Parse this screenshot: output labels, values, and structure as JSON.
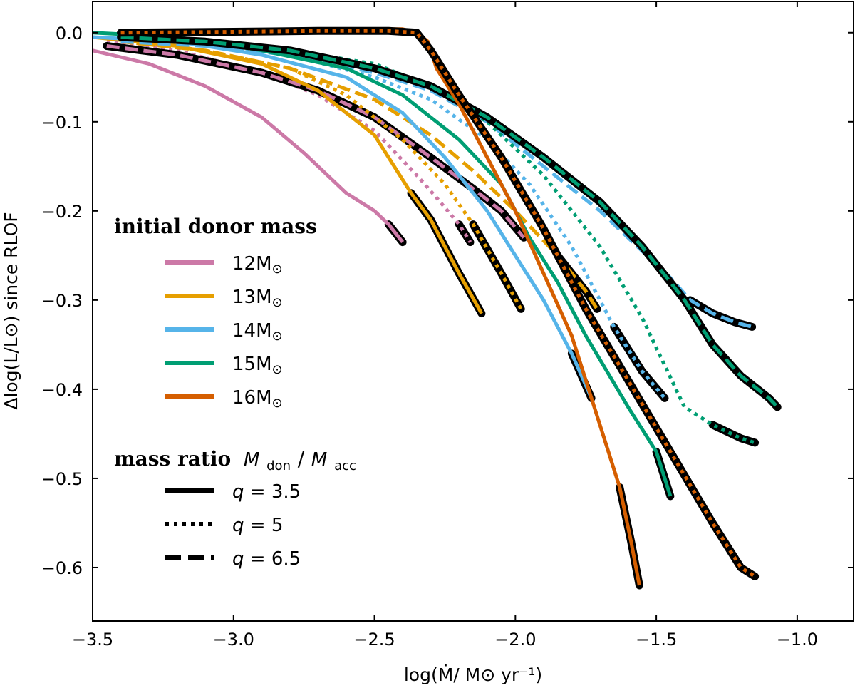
{
  "chart_data": {
    "type": "line",
    "xlabel": "log(Ṁ/ M⊙ yr⁻¹)",
    "ylabel": "Δlog(L/L⊙) since RLOF",
    "xlim": [
      -3.5,
      -0.8
    ],
    "ylim": [
      -0.66,
      0.035
    ],
    "xticks": [
      -3.5,
      -3.0,
      -2.5,
      -2.0,
      -1.5,
      -1.0
    ],
    "xtick_labels": [
      "−3.5",
      "−3.0",
      "−2.5",
      "−2.0",
      "−1.5",
      "−1.0"
    ],
    "yticks": [
      0.0,
      -0.1,
      -0.2,
      -0.3,
      -0.4,
      -0.5,
      -0.6
    ],
    "ytick_labels": [
      "0.0",
      "−0.1",
      "−0.2",
      "−0.3",
      "−0.4",
      "−0.5",
      "−0.6"
    ],
    "legend_donor": {
      "title": "initial donor mass",
      "entries": [
        {
          "mass": "12",
          "unit": "M⊙",
          "color": "#CC79A7"
        },
        {
          "mass": "13",
          "unit": "M⊙",
          "color": "#E69F00"
        },
        {
          "mass": "14",
          "unit": "M⊙",
          "color": "#56B4E9"
        },
        {
          "mass": "15",
          "unit": "M⊙",
          "color": "#009E73"
        },
        {
          "mass": "16",
          "unit": "M⊙",
          "color": "#D55E00"
        }
      ]
    },
    "legend_q": {
      "title": "mass ratio",
      "title_math": "M",
      "sub_don": "don",
      "slash": "/",
      "title_math2": "M",
      "sub_acc": "acc",
      "entries": [
        {
          "label": "q",
          "eq": " = 3.5",
          "style": "solid"
        },
        {
          "label": "q",
          "eq": " = 5",
          "style": "dotted"
        },
        {
          "label": "q",
          "eq": " = 6.5",
          "style": "dashed"
        }
      ]
    },
    "series": [
      {
        "name": "12M⊙ q=3.5",
        "color": "#CC79A7",
        "style": "solid",
        "x": [
          -3.5,
          -3.3,
          -3.1,
          -2.9,
          -2.75,
          -2.6,
          -2.5,
          -2.45,
          -2.4
        ],
        "y": [
          -0.02,
          -0.035,
          -0.06,
          -0.095,
          -0.135,
          -0.18,
          -0.2,
          -0.215,
          -0.235
        ],
        "highlight_from": -2.49
      },
      {
        "name": "12M⊙ q=5",
        "color": "#CC79A7",
        "style": "dotted",
        "x": [
          -3.45,
          -3.2,
          -2.9,
          -2.7,
          -2.5,
          -2.35,
          -2.28,
          -2.2,
          -2.16
        ],
        "y": [
          -0.01,
          -0.02,
          -0.045,
          -0.07,
          -0.11,
          -0.16,
          -0.185,
          -0.215,
          -0.235
        ],
        "highlight_from": -2.25
      },
      {
        "name": "12M⊙ q=6.5",
        "color": "#CC79A7",
        "style": "dashed",
        "x": [
          -3.45,
          -3.2,
          -2.9,
          -2.7,
          -2.5,
          -2.3,
          -2.15,
          -2.05,
          -1.97
        ],
        "y": [
          -0.015,
          -0.025,
          -0.045,
          -0.065,
          -0.095,
          -0.14,
          -0.175,
          -0.2,
          -0.23
        ],
        "highlight_from": -9
      },
      {
        "name": "13M⊙ q=3.5",
        "color": "#E69F00",
        "style": "solid",
        "x": [
          -3.5,
          -3.2,
          -2.9,
          -2.7,
          -2.5,
          -2.37,
          -2.3,
          -2.2,
          -2.12
        ],
        "y": [
          -0.005,
          -0.015,
          -0.035,
          -0.065,
          -0.115,
          -0.18,
          -0.21,
          -0.27,
          -0.315
        ],
        "highlight_from": -2.37
      },
      {
        "name": "13M⊙ q=5",
        "color": "#E69F00",
        "style": "dotted",
        "x": [
          -3.4,
          -3.1,
          -2.8,
          -2.6,
          -2.4,
          -2.25,
          -2.15,
          -2.05,
          -1.98
        ],
        "y": [
          -0.01,
          -0.02,
          -0.04,
          -0.07,
          -0.12,
          -0.17,
          -0.215,
          -0.27,
          -0.31
        ],
        "highlight_from": -2.18
      },
      {
        "name": "13M⊙ q=6.5",
        "color": "#E69F00",
        "style": "dashed",
        "x": [
          -3.4,
          -3.1,
          -2.8,
          -2.5,
          -2.3,
          -2.15,
          -2.0,
          -1.85,
          -1.75,
          -1.71
        ],
        "y": [
          -0.01,
          -0.02,
          -0.04,
          -0.075,
          -0.115,
          -0.155,
          -0.2,
          -0.25,
          -0.29,
          -0.31
        ],
        "highlight_from": -1.89
      },
      {
        "name": "14M⊙ q=3.5",
        "color": "#56B4E9",
        "style": "solid",
        "x": [
          -3.5,
          -3.2,
          -2.9,
          -2.6,
          -2.4,
          -2.25,
          -2.1,
          -2.0,
          -1.9,
          -1.8,
          -1.73
        ],
        "y": [
          -0.005,
          -0.01,
          -0.025,
          -0.05,
          -0.09,
          -0.14,
          -0.2,
          -0.25,
          -0.3,
          -0.36,
          -0.41
        ],
        "highlight_from": -1.8
      },
      {
        "name": "14M⊙ q=5",
        "color": "#56B4E9",
        "style": "dotted",
        "x": [
          -3.4,
          -3.1,
          -2.8,
          -2.5,
          -2.3,
          -2.1,
          -1.95,
          -1.8,
          -1.65,
          -1.55,
          -1.47
        ],
        "y": [
          -0.005,
          -0.012,
          -0.025,
          -0.05,
          -0.075,
          -0.12,
          -0.17,
          -0.24,
          -0.33,
          -0.38,
          -0.41
        ],
        "highlight_from": -1.67
      },
      {
        "name": "14M⊙ q=6.5",
        "color": "#56B4E9",
        "style": "dashed",
        "x": [
          -3.4,
          -3.1,
          -2.8,
          -2.5,
          -2.3,
          -2.1,
          -1.9,
          -1.7,
          -1.55,
          -1.45,
          -1.38,
          -1.3,
          -1.22,
          -1.16
        ],
        "y": [
          -0.01,
          -0.015,
          -0.025,
          -0.045,
          -0.065,
          -0.1,
          -0.15,
          -0.2,
          -0.245,
          -0.275,
          -0.3,
          -0.315,
          -0.325,
          -0.33
        ],
        "highlight_from": -1.4
      },
      {
        "name": "15M⊙ q=3.5",
        "color": "#009E73",
        "style": "solid",
        "x": [
          -3.5,
          -3.2,
          -2.9,
          -2.6,
          -2.4,
          -2.2,
          -2.05,
          -1.95,
          -1.85,
          -1.75,
          -1.6,
          -1.5,
          -1.45
        ],
        "y": [
          0.0,
          -0.005,
          -0.02,
          -0.04,
          -0.07,
          -0.12,
          -0.17,
          -0.23,
          -0.28,
          -0.34,
          -0.42,
          -0.47,
          -0.52
        ],
        "highlight_from": -1.52
      },
      {
        "name": "15M⊙ q=5",
        "color": "#009E73",
        "style": "dotted",
        "x": [
          -3.4,
          -3.1,
          -2.8,
          -2.5,
          -2.3,
          -2.1,
          -1.9,
          -1.7,
          -1.55,
          -1.4,
          -1.3,
          -1.2,
          -1.15
        ],
        "y": [
          -0.002,
          -0.008,
          -0.02,
          -0.035,
          -0.06,
          -0.1,
          -0.16,
          -0.24,
          -0.32,
          -0.42,
          -0.44,
          -0.455,
          -0.46
        ],
        "highlight_from": -1.37
      },
      {
        "name": "15M⊙ q=6.5",
        "color": "#009E73",
        "style": "dashed",
        "x": [
          -3.4,
          -3.1,
          -2.8,
          -2.5,
          -2.3,
          -2.1,
          -1.9,
          -1.7,
          -1.55,
          -1.4,
          -1.3,
          -1.2,
          -1.1,
          -1.07
        ],
        "y": [
          -0.005,
          -0.01,
          -0.02,
          -0.04,
          -0.06,
          -0.095,
          -0.14,
          -0.19,
          -0.24,
          -0.3,
          -0.35,
          -0.385,
          -0.41,
          -0.42
        ],
        "highlight_from": -9
      },
      {
        "name": "16M⊙ q=3.5",
        "color": "#D55E00",
        "style": "solid",
        "x": [
          -3.0,
          -2.7,
          -2.5,
          -2.4,
          -2.35,
          -2.31,
          -2.28,
          -2.2,
          -2.1,
          -2.0,
          -1.9,
          -1.8,
          -1.7,
          -1.63,
          -1.59,
          -1.56
        ],
        "y": [
          0.0,
          0.003,
          0.004,
          0.004,
          0.0,
          -0.01,
          -0.04,
          -0.08,
          -0.14,
          -0.2,
          -0.27,
          -0.34,
          -0.44,
          -0.51,
          -0.57,
          -0.62
        ],
        "highlight_from": -1.64
      },
      {
        "name": "16M⊙ q=5",
        "color": "#D55E00",
        "style": "dotted",
        "x": [
          -3.4,
          -3.0,
          -2.7,
          -2.45,
          -2.35,
          -2.3,
          -2.2,
          -2.05,
          -1.9,
          -1.75,
          -1.6,
          -1.45,
          -1.3,
          -1.2,
          -1.15
        ],
        "y": [
          0.0,
          0.001,
          0.002,
          0.002,
          0.0,
          -0.02,
          -0.07,
          -0.14,
          -0.22,
          -0.31,
          -0.39,
          -0.47,
          -0.55,
          -0.6,
          -0.61
        ],
        "highlight_from": -9
      }
    ]
  }
}
